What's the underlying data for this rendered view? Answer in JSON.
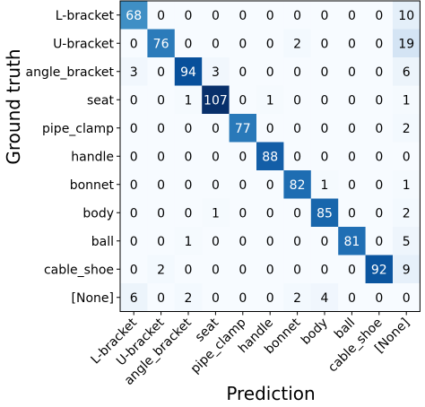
{
  "chart_data": {
    "type": "heatmap",
    "title": "",
    "xlabel": "Prediction",
    "ylabel": "Ground truth",
    "x_categories": [
      "L-bracket",
      "U-bracket",
      "angle_bracket",
      "seat",
      "pipe_clamp",
      "handle",
      "bonnet",
      "body",
      "ball",
      "cable_shoe",
      "[None]"
    ],
    "y_categories": [
      "L-bracket",
      "U-bracket",
      "angle_bracket",
      "seat",
      "pipe_clamp",
      "handle",
      "bonnet",
      "body",
      "ball",
      "cable_shoe",
      "[None]"
    ],
    "values": [
      [
        68,
        0,
        0,
        0,
        0,
        0,
        0,
        0,
        0,
        0,
        10
      ],
      [
        0,
        76,
        0,
        0,
        0,
        0,
        2,
        0,
        0,
        0,
        19
      ],
      [
        3,
        0,
        94,
        3,
        0,
        0,
        0,
        0,
        0,
        0,
        6
      ],
      [
        0,
        0,
        1,
        107,
        0,
        1,
        0,
        0,
        0,
        0,
        1
      ],
      [
        0,
        0,
        0,
        0,
        77,
        0,
        0,
        0,
        0,
        0,
        2
      ],
      [
        0,
        0,
        0,
        0,
        0,
        88,
        0,
        0,
        0,
        0,
        0
      ],
      [
        0,
        0,
        0,
        0,
        0,
        0,
        82,
        1,
        0,
        0,
        1
      ],
      [
        0,
        0,
        0,
        1,
        0,
        0,
        0,
        85,
        0,
        0,
        2
      ],
      [
        0,
        0,
        1,
        0,
        0,
        0,
        0,
        0,
        81,
        0,
        5
      ],
      [
        0,
        2,
        0,
        0,
        0,
        0,
        0,
        0,
        0,
        92,
        9
      ],
      [
        6,
        0,
        2,
        0,
        0,
        0,
        2,
        4,
        0,
        0,
        0
      ]
    ],
    "colormap": "Blues",
    "color_low": "#f7fbff",
    "color_high": "#08306b",
    "value_range": [
      0,
      107
    ],
    "text_color_light": "#ffffff",
    "text_color_dark": "#000000"
  }
}
